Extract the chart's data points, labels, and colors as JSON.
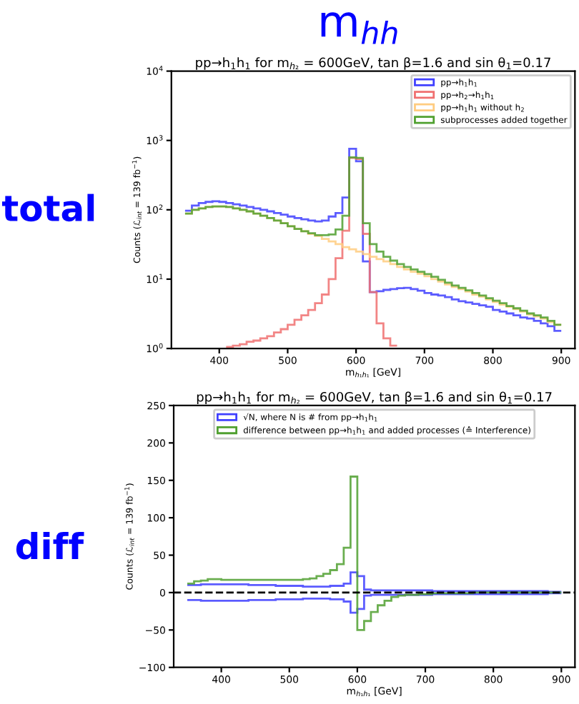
{
  "chart_data": [
    {
      "type": "histogram",
      "title": "pp→h$_{1}$h$_{1}$ for m$_{h₂}$ = 600GeV, tan β=1.6 and sin θ$_{1}$=0.17",
      "xlabel": "m$_{h₁h₁}$ [GeV]",
      "ylabel": "Counts (ℒ$_{int}$ = 139 fb$^{−1}$)",
      "annotations": [
        "m$_{hh}$",
        "total"
      ],
      "bins": [
        350,
        360,
        370,
        380,
        390,
        400,
        410,
        420,
        430,
        440,
        450,
        460,
        470,
        480,
        490,
        500,
        510,
        520,
        530,
        540,
        550,
        560,
        570,
        580,
        590,
        600,
        610,
        620,
        630,
        640,
        650,
        660,
        670,
        680,
        690,
        700,
        710,
        720,
        730,
        740,
        750,
        760,
        770,
        780,
        790,
        800,
        810,
        820,
        830,
        840,
        850,
        860,
        870,
        880,
        890,
        900
      ],
      "series": [
        {
          "name": "pp→h$_{1}$h$_{1}$",
          "color": "#4040ff",
          "values": [
            97,
            115,
            125,
            130,
            133,
            130,
            125,
            120,
            115,
            110,
            105,
            100,
            95,
            90,
            85,
            80,
            76,
            73,
            70,
            68,
            70,
            80,
            90,
            150,
            760,
            500,
            18,
            6.5,
            6.7,
            7,
            7.2,
            7.4,
            7.5,
            7.2,
            6.8,
            6.3,
            6,
            5.8,
            5.5,
            5.1,
            4.8,
            4.6,
            4.4,
            4.2,
            4,
            3.6,
            3.4,
            3.2,
            3,
            2.8,
            2.7,
            2.5,
            2.3,
            2.1,
            1.8
          ]
        },
        {
          "name": "pp→h$_{2}$→h$_{1}$h$_{1}$",
          "color": "#f07070",
          "bins": [
            410,
            420,
            430,
            440,
            450,
            460,
            470,
            480,
            490,
            500,
            510,
            520,
            530,
            540,
            550,
            560,
            570,
            580,
            590,
            600,
            610,
            620,
            630,
            640,
            650,
            660
          ],
          "values": [
            1.05,
            1.1,
            1.15,
            1.25,
            1.3,
            1.4,
            1.5,
            1.7,
            1.9,
            2.2,
            2.6,
            3,
            3.6,
            4.5,
            6,
            10,
            20,
            50,
            560,
            540,
            45,
            6.5,
            2.3,
            1.4,
            1.1
          ]
        },
        {
          "name": "pp→h$_{1}$h$_{1}$ without h$_{2}$",
          "color": "#ffcc80",
          "values": [
            88,
            100,
            105,
            110,
            112,
            112,
            110,
            105,
            100,
            95,
            88,
            82,
            76,
            70,
            64,
            58,
            53,
            49,
            45,
            42,
            38,
            35,
            32,
            29,
            27,
            25,
            23,
            21,
            19.5,
            18,
            16.5,
            15,
            13.8,
            12.8,
            12,
            11,
            10,
            9.2,
            8.4,
            7.7,
            7.2,
            6.6,
            6,
            5.6,
            5.1,
            4.7,
            4.3,
            4,
            3.7,
            3.4,
            3.1,
            2.9,
            2.7,
            2.4,
            2.2
          ]
        },
        {
          "name": "subprocesses added together",
          "color": "#50a030",
          "values": [
            88,
            100,
            105,
            110,
            112,
            112,
            110,
            105,
            100,
            95,
            88,
            82,
            76,
            70,
            64,
            58,
            53,
            49,
            46,
            43,
            43,
            44,
            52,
            82,
            570,
            560,
            64,
            32,
            25,
            21,
            18.5,
            16.5,
            15,
            13.8,
            12.8,
            11.8,
            10.8,
            9.8,
            8.9,
            8.1,
            7.5,
            6.9,
            6.3,
            5.8,
            5.3,
            4.9,
            4.5,
            4.1,
            3.8,
            3.5,
            3.2,
            3,
            2.8,
            2.5,
            2.2
          ]
        }
      ],
      "log": "y",
      "xlim": [
        330,
        920
      ],
      "xticks": [
        400,
        500,
        600,
        700,
        800,
        900
      ],
      "ylim": [
        1,
        10000
      ],
      "yticks": [
        {
          "value": 1,
          "label": "10$^{0}$"
        },
        {
          "value": 10,
          "label": "10$^{1}$"
        },
        {
          "value": 100,
          "label": "10$^{2}$"
        },
        {
          "value": 1000,
          "label": "10$^{3}$"
        },
        {
          "value": 10000,
          "label": "10$^{4}$"
        }
      ],
      "legend": "top right"
    },
    {
      "type": "histogram",
      "title": "pp→h$_{1}$h$_{1}$ for m$_{h₂}$ = 600GeV, tan β=1.6 and sin θ$_{1}$=0.17",
      "xlabel": "m$_{h₁h₁}$ [GeV]",
      "ylabel": "Counts (ℒ$_{int}$ = 139 fb$^{−1}$)",
      "annotations": [
        "diff"
      ],
      "bins": [
        350,
        360,
        370,
        380,
        390,
        400,
        410,
        420,
        430,
        440,
        450,
        460,
        470,
        480,
        490,
        500,
        510,
        520,
        530,
        540,
        550,
        560,
        570,
        580,
        590,
        600,
        610,
        620,
        630,
        640,
        650,
        660,
        670,
        680,
        690,
        700,
        710,
        720,
        730,
        740,
        750,
        760,
        770,
        780,
        790,
        800,
        810,
        820,
        830,
        840,
        850,
        860,
        870,
        880,
        890,
        900
      ],
      "series": [
        {
          "name": "√N, where N is # from pp→h$_{1}$h$_{1}$",
          "color": "#4040ff",
          "values": [
            10,
            10,
            11,
            11,
            11,
            11,
            11,
            11,
            11,
            10,
            10,
            10,
            10,
            9,
            9,
            9,
            9,
            8,
            8,
            8,
            8,
            9,
            9,
            12,
            27,
            22,
            4,
            3,
            3,
            3,
            3,
            3,
            3,
            3,
            3,
            3,
            2,
            2,
            2,
            2,
            2,
            2,
            2,
            2,
            2,
            2,
            2,
            2,
            2,
            2,
            2,
            2,
            2,
            1,
            1
          ]
        },
        {
          "color": "#4040ff",
          "values": [
            -10,
            -10,
            -11,
            -11,
            -11,
            -11,
            -11,
            -11,
            -11,
            -10,
            -10,
            -10,
            -10,
            -9,
            -9,
            -9,
            -9,
            -8,
            -8,
            -8,
            -8,
            -9,
            -9,
            -12,
            -27,
            -22,
            -4,
            -3,
            -3,
            -3,
            -3,
            -3,
            -3,
            -3,
            -3,
            -3,
            -2,
            -2,
            -2,
            -2,
            -2,
            -2,
            -2,
            -2,
            -2,
            -2,
            -2,
            -2,
            -2,
            -2,
            -2,
            -2,
            -2,
            -1,
            -1
          ]
        },
        {
          "name": "difference between pp→h$_{1}$h$_{1}$ and added processes (≙ Interference)",
          "color": "#50a030",
          "values": [
            12,
            15,
            16,
            18,
            18,
            17,
            17,
            17,
            17,
            17,
            17,
            17,
            17,
            17,
            17,
            17,
            17,
            18,
            19,
            22,
            25,
            30,
            38,
            60,
            155,
            -50,
            -38,
            -26,
            -17,
            -11,
            -6,
            -4,
            -3,
            -3,
            -2,
            -2,
            -1,
            -1,
            -1,
            -1,
            -1,
            -1,
            0,
            0,
            0,
            0,
            0,
            0,
            0,
            0,
            0,
            0,
            0,
            0,
            0
          ]
        }
      ],
      "ref_lines": [
        {
          "axis": "y",
          "value": 0,
          "color": "#000000",
          "line_style": "dashed"
        }
      ],
      "xlim": [
        330,
        920
      ],
      "xticks": [
        400,
        500,
        600,
        700,
        800,
        900
      ],
      "ylim": [
        -100,
        250
      ],
      "yticks": [
        {
          "value": -100,
          "label": "−100"
        },
        {
          "value": -50,
          "label": "−50"
        },
        0,
        50,
        100,
        150,
        200,
        250
      ],
      "legend": "top"
    }
  ]
}
